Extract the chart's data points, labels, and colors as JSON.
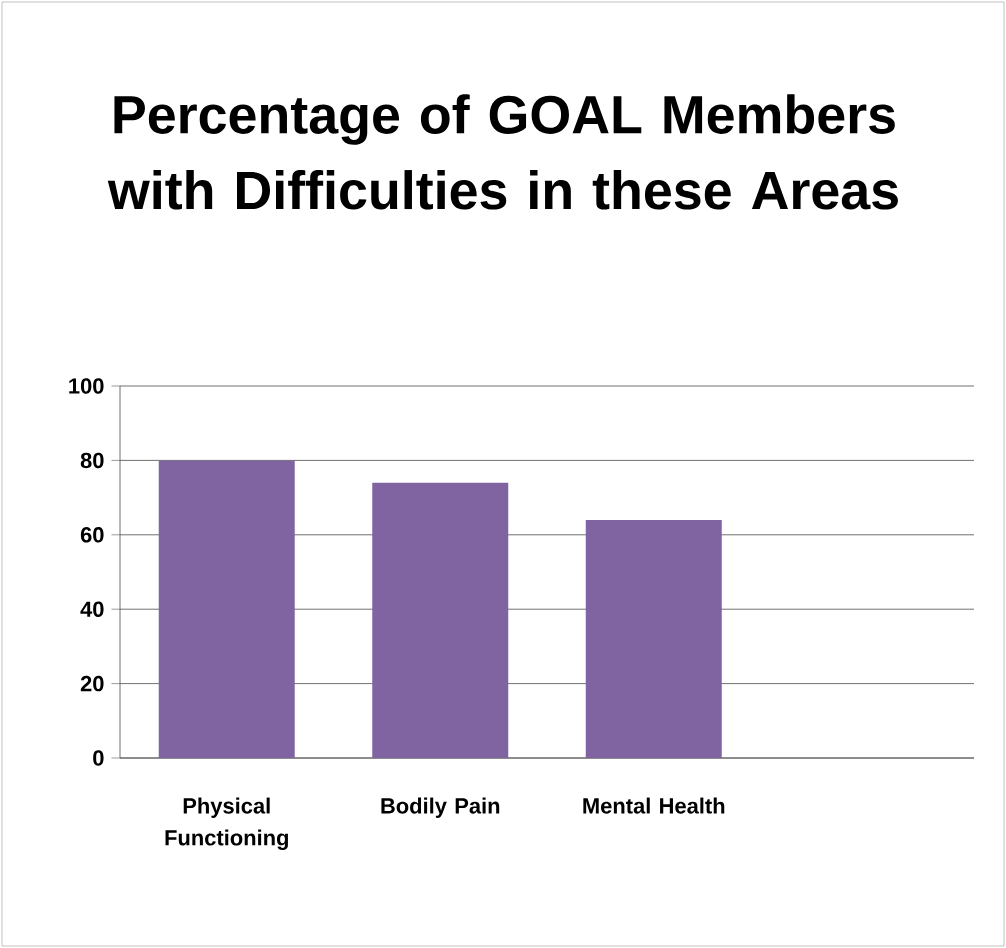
{
  "chart_data": {
    "type": "bar",
    "title": "Percentage of GOAL Members with Difficulties in these Areas",
    "categories": [
      "Physical Functioning",
      "Bodily Pain",
      "Mental Health",
      null
    ],
    "values": [
      80,
      74,
      64,
      null
    ],
    "color": "#8064a2",
    "ylim": [
      0,
      100
    ],
    "yticks": [
      0,
      20,
      40,
      60,
      80,
      100
    ],
    "grid": "y"
  }
}
